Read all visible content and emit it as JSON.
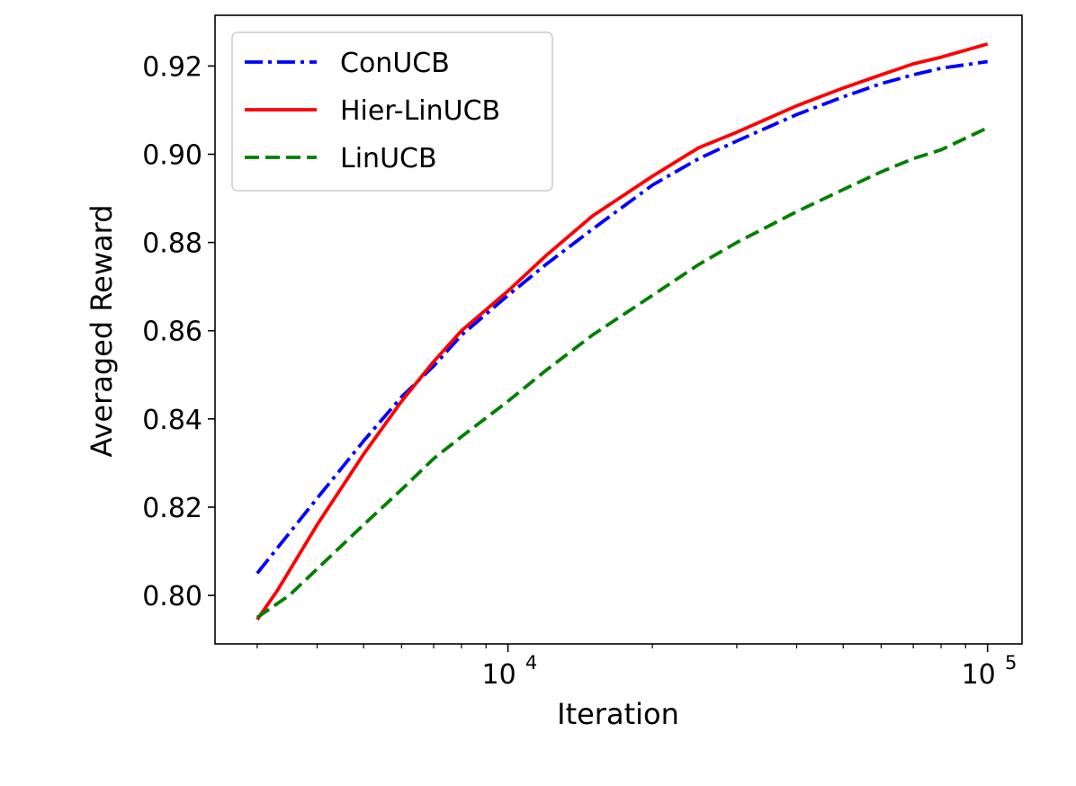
{
  "chart_data": {
    "type": "line",
    "title": "",
    "xlabel": "Iteration",
    "ylabel": "Averaged Reward",
    "xscale": "log",
    "xlim": [
      2450,
      118000
    ],
    "ylim": [
      0.789,
      0.9315
    ],
    "x_major_ticks": [
      {
        "value": 10000,
        "base": "10",
        "exp": "4"
      },
      {
        "value": 100000,
        "base": "10",
        "exp": "5"
      }
    ],
    "y_ticks": [
      {
        "value": 0.8,
        "label": "0.80"
      },
      {
        "value": 0.82,
        "label": "0.82"
      },
      {
        "value": 0.84,
        "label": "0.84"
      },
      {
        "value": 0.86,
        "label": "0.86"
      },
      {
        "value": 0.88,
        "label": "0.88"
      },
      {
        "value": 0.9,
        "label": "0.90"
      },
      {
        "value": 0.92,
        "label": "0.92"
      }
    ],
    "grid": false,
    "legend": "top-left",
    "series": [
      {
        "name": "ConUCB",
        "color": "#0000ff",
        "style": "dash-dot",
        "x": [
          3000,
          4000,
          5000,
          6000,
          7000,
          8000,
          10000,
          12000,
          15000,
          20000,
          25000,
          30000,
          40000,
          50000,
          60000,
          70000,
          80000,
          100000
        ],
        "y": [
          0.805,
          0.822,
          0.835,
          0.845,
          0.852,
          0.859,
          0.868,
          0.875,
          0.883,
          0.893,
          0.899,
          0.903,
          0.909,
          0.913,
          0.916,
          0.918,
          0.9195,
          0.921
        ]
      },
      {
        "name": "Hier-LinUCB",
        "color": "#ff0000",
        "style": "solid",
        "x": [
          3000,
          3300,
          4000,
          5000,
          6000,
          7000,
          8000,
          10000,
          12000,
          15000,
          20000,
          25000,
          30000,
          40000,
          50000,
          60000,
          70000,
          80000,
          100000
        ],
        "y": [
          0.7945,
          0.801,
          0.816,
          0.832,
          0.844,
          0.853,
          0.86,
          0.869,
          0.877,
          0.886,
          0.895,
          0.9015,
          0.905,
          0.911,
          0.915,
          0.918,
          0.9205,
          0.922,
          0.925
        ]
      },
      {
        "name": "LinUCB",
        "color": "#008000",
        "style": "dashed",
        "x": [
          3000,
          3500,
          4000,
          5000,
          6000,
          7000,
          8000,
          10000,
          12000,
          15000,
          20000,
          25000,
          30000,
          40000,
          50000,
          60000,
          70000,
          80000,
          100000
        ],
        "y": [
          0.795,
          0.8,
          0.806,
          0.816,
          0.824,
          0.831,
          0.836,
          0.844,
          0.851,
          0.859,
          0.868,
          0.875,
          0.88,
          0.887,
          0.892,
          0.896,
          0.899,
          0.901,
          0.906
        ]
      }
    ]
  }
}
